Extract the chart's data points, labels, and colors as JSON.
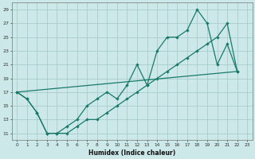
{
  "xlabel": "Humidex (Indice chaleur)",
  "bg_color": "#cce8e8",
  "grid_color": "#aacccc",
  "line_color": "#1a7a6a",
  "line1_x": [
    0,
    1,
    2,
    3,
    4,
    5,
    6,
    7,
    8,
    9,
    10,
    11,
    12,
    13,
    14,
    15,
    16,
    17,
    18,
    19,
    20,
    21,
    22
  ],
  "line1_y": [
    17,
    16,
    14,
    11,
    11,
    12,
    13,
    15,
    16,
    17,
    16,
    18,
    21,
    18,
    23,
    25,
    25,
    26,
    29,
    27,
    21,
    24,
    20
  ],
  "line2_x": [
    0,
    1,
    2,
    3,
    4,
    5,
    6,
    7,
    8,
    9,
    10,
    11,
    12,
    13,
    14,
    15,
    16,
    17,
    18,
    19,
    20,
    21,
    22
  ],
  "line2_y": [
    17,
    16,
    14,
    11,
    11,
    11,
    12,
    13,
    13,
    14,
    15,
    16,
    17,
    18,
    19,
    20,
    21,
    22,
    23,
    24,
    25,
    27,
    20
  ],
  "line3_x": [
    0,
    22
  ],
  "line3_y": [
    17,
    20
  ],
  "ylim": [
    10,
    30
  ],
  "xlim": [
    -0.5,
    23.5
  ],
  "yticks": [
    11,
    13,
    15,
    17,
    19,
    21,
    23,
    25,
    27,
    29
  ],
  "xticks": [
    0,
    1,
    2,
    3,
    4,
    5,
    6,
    7,
    8,
    9,
    10,
    11,
    12,
    13,
    14,
    15,
    16,
    17,
    18,
    19,
    20,
    21,
    22,
    23
  ]
}
